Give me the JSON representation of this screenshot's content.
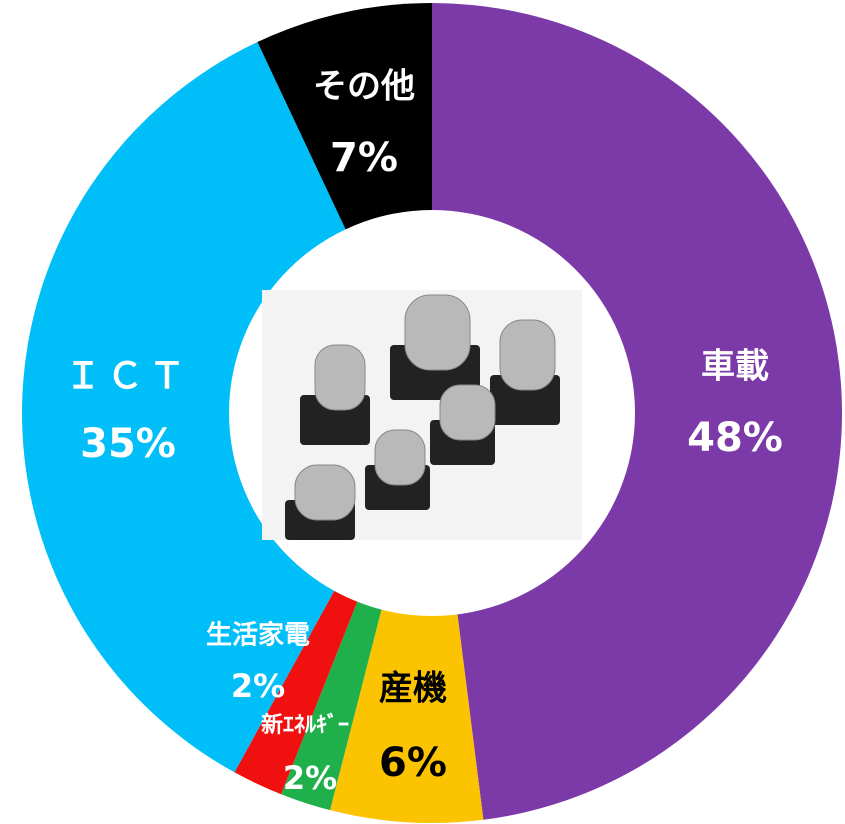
{
  "chart_data": {
    "type": "donut",
    "categories": [
      "車載",
      "産機",
      "新ｴﾈﾙｷﾞｰ",
      "生活家電",
      "ＩＣＴ",
      "その他"
    ],
    "values": [
      48,
      6,
      2,
      2,
      35,
      7
    ],
    "value_labels": [
      "48%",
      "6%",
      "2%",
      "2%",
      "35%",
      "7%"
    ],
    "colors": [
      "#7b3aa8",
      "#fbc300",
      "#1fb04c",
      "#f01010",
      "#00bff8",
      "#000000"
    ]
  }
}
